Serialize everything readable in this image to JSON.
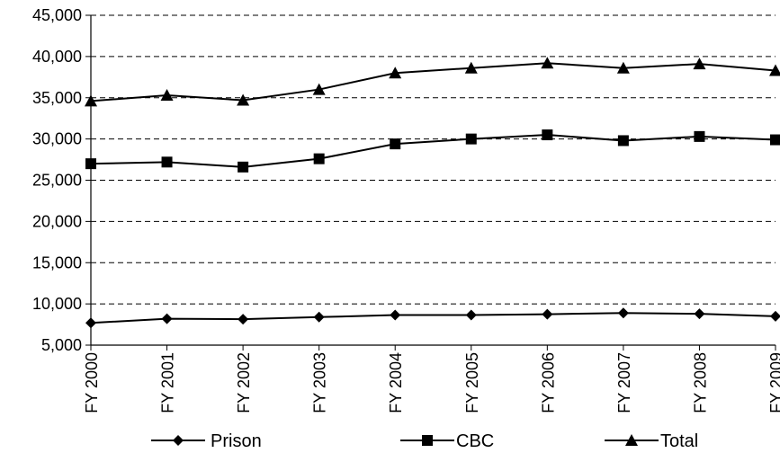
{
  "chart_data": {
    "type": "line",
    "title": "",
    "xlabel": "",
    "ylabel": "",
    "categories": [
      "FY 2000",
      "FY 2001",
      "FY 2002",
      "FY 2003",
      "FY 2004",
      "FY 2005",
      "FY 2006",
      "FY 2007",
      "FY 2008",
      "FY 2009"
    ],
    "ylim": [
      5000,
      45000
    ],
    "yticks": [
      5000,
      10000,
      15000,
      20000,
      25000,
      30000,
      35000,
      40000,
      45000
    ],
    "ytick_labels": [
      "5,000",
      "10,000",
      "15,000",
      "20,000",
      "25,000",
      "30,000",
      "35,000",
      "40,000",
      "45,000"
    ],
    "grid": "horizontal-dashed",
    "legend_position": "bottom",
    "series": [
      {
        "name": "Prison",
        "marker": "diamond",
        "color": "#000000",
        "values": [
          7700,
          8200,
          8150,
          8400,
          8650,
          8650,
          8750,
          8900,
          8800,
          8500
        ]
      },
      {
        "name": "CBC",
        "marker": "square",
        "color": "#000000",
        "values": [
          27000,
          27200,
          26600,
          27600,
          29400,
          30000,
          30500,
          29800,
          30300,
          29900
        ]
      },
      {
        "name": "Total",
        "marker": "triangle",
        "color": "#000000",
        "values": [
          34600,
          35300,
          34700,
          36000,
          38000,
          38600,
          39200,
          38600,
          39100,
          38300
        ]
      }
    ]
  }
}
